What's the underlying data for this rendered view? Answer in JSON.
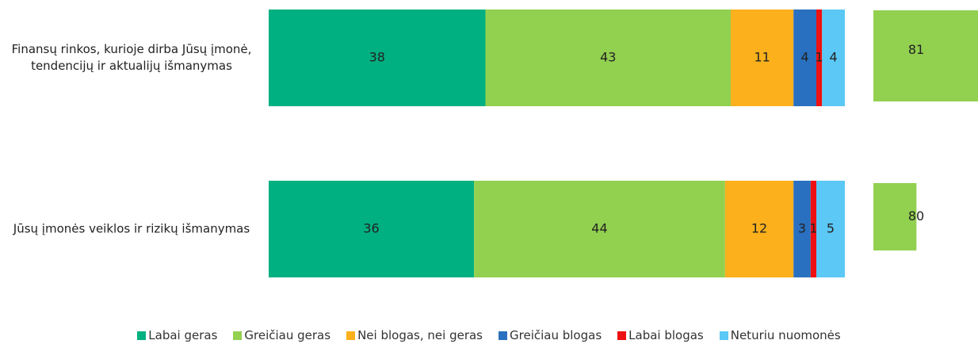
{
  "chart_data": [
    {
      "type": "stacked_bar",
      "categories": [
        "Finansų rinkos, kurioje dirba Jūsų įmonė, tendencijų ir aktualijų išmanymas",
        "Jūsų įmonės veiklos ir rizikų išmanymas"
      ],
      "series": [
        {
          "name": "Labai geras",
          "color": "#00b080",
          "values": [
            38,
            36
          ]
        },
        {
          "name": "Greičiau geras",
          "color": "#92d050",
          "values": [
            43,
            44
          ]
        },
        {
          "name": "Nei blogas, nei geras",
          "color": "#fbb01c",
          "values": [
            11,
            12
          ]
        },
        {
          "name": "Greičiau blogas",
          "color": "#2a70c0",
          "values": [
            4,
            3
          ]
        },
        {
          "name": "Labai blogas",
          "color": "#ee1111",
          "values": [
            1,
            1
          ]
        },
        {
          "name": "Neturiu nuomonės",
          "color": "#5bc8f5",
          "values": [
            4,
            5
          ]
        }
      ],
      "xlim": [
        0,
        101
      ],
      "legend": "bottom"
    },
    {
      "type": "bar",
      "values": [
        81,
        80
      ],
      "color": "#92d050",
      "xlim": [
        79.3,
        81
      ]
    }
  ]
}
